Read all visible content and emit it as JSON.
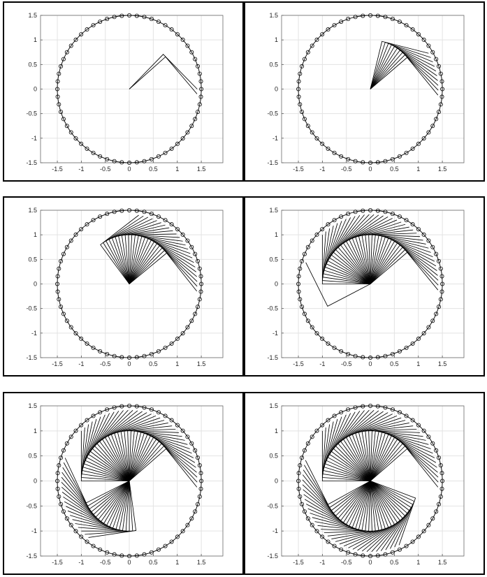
{
  "chart_data": [
    {
      "type": "line",
      "title": "",
      "xlabel": "",
      "ylabel": "",
      "xlim": [
        -1.85,
        1.95
      ],
      "ylim": [
        -1.5,
        1.5
      ],
      "grid": true,
      "x_ticks": [
        "-1.5",
        "-1",
        "-0.5",
        "0",
        "0.5",
        "1",
        "1.5"
      ],
      "y_ticks": [
        "1.5",
        "1",
        "0.5",
        "0",
        "-0.5",
        "-1",
        "-1.5"
      ],
      "circle": {
        "radius": 1.5,
        "marker_count": 60,
        "marker": "circle"
      },
      "arm": {
        "link_length": 1.0,
        "joint_angle_deg": -90
      },
      "series": [
        {
          "base_angle_deg": [
            45,
            41
          ]
        }
      ]
    },
    {
      "type": "line",
      "title": "",
      "xlabel": "",
      "ylabel": "",
      "xlim": [
        -1.85,
        1.95
      ],
      "ylim": [
        -1.5,
        1.5
      ],
      "grid": true,
      "x_ticks": [
        "-1.5",
        "-1",
        "-0.5",
        "0",
        "0.5",
        "1",
        "1.5"
      ],
      "y_ticks": [
        "1.5",
        "1",
        "0.5",
        "0",
        "-0.5",
        "-1",
        "-1.5"
      ],
      "circle": {
        "radius": 1.5,
        "marker_count": 60,
        "marker": "circle"
      },
      "arm": {
        "link_length": 1.0,
        "joint_angle_deg": -90
      },
      "series": [
        {
          "base_angle_deg": [
            76,
            72,
            68,
            64,
            60,
            56,
            52,
            48,
            44,
            40
          ]
        }
      ]
    },
    {
      "type": "line",
      "title": "",
      "xlabel": "",
      "ylabel": "",
      "xlim": [
        -1.85,
        1.95
      ],
      "ylim": [
        -1.5,
        1.5
      ],
      "grid": true,
      "x_ticks": [
        "-1.5",
        "-1",
        "-0.5",
        "0",
        "0.5",
        "1",
        "1.5"
      ],
      "y_ticks": [
        "1.5",
        "1",
        "0.5",
        "0",
        "-0.5",
        "-1",
        "-1.5"
      ],
      "circle": {
        "radius": 1.5,
        "marker_count": 60,
        "marker": "circle"
      },
      "arm": {
        "link_length": 1.0,
        "joint_angle_deg": -90
      },
      "series": [
        {
          "base_angle_deg": [
            127,
            123,
            119,
            115,
            111,
            107,
            103,
            99,
            95,
            91,
            87,
            83,
            79,
            75,
            71,
            67,
            63,
            59,
            55,
            51,
            47,
            43,
            39
          ]
        }
      ]
    },
    {
      "type": "line",
      "title": "",
      "xlabel": "",
      "ylabel": "",
      "xlim": [
        -1.85,
        1.95
      ],
      "ylim": [
        -1.5,
        1.5
      ],
      "grid": true,
      "x_ticks": [
        "-1.5",
        "-1",
        "-0.5",
        "0",
        "0.5",
        "1",
        "1.5"
      ],
      "y_ticks": [
        "1.5",
        "1",
        "0.5",
        "0",
        "-0.5",
        "-1",
        "-1.5"
      ],
      "circle": {
        "radius": 1.5,
        "marker_count": 60,
        "marker": "circle"
      },
      "arm": {
        "link_length": 1.0,
        "joint_angle_deg": -90
      },
      "series": [
        {
          "base_angle_deg": [
            -153,
            180,
            176,
            172,
            168,
            164,
            160,
            156,
            152,
            148,
            144,
            140,
            136,
            132,
            128,
            124,
            120,
            116,
            112,
            108,
            104,
            100,
            96,
            92,
            88,
            84,
            80,
            76,
            72,
            68,
            64,
            60,
            56,
            52,
            48,
            44,
            40
          ]
        }
      ]
    },
    {
      "type": "line",
      "title": "",
      "xlabel": "",
      "ylabel": "",
      "xlim": [
        -1.85,
        1.95
      ],
      "ylim": [
        -1.5,
        1.5
      ],
      "grid": true,
      "x_ticks": [
        "-1.5",
        "-1",
        "-0.5",
        "0",
        "0.5",
        "1",
        "1.5"
      ],
      "y_ticks": [
        "1.5",
        "1",
        "0.5",
        "0",
        "-0.5",
        "-1",
        "-1.5"
      ],
      "circle": {
        "radius": 1.5,
        "marker_count": 60,
        "marker": "circle"
      },
      "arm": {
        "link_length": 1.0,
        "joint_angle_deg": -90
      },
      "series": [
        {
          "base_angle_deg": [
            -82,
            -86,
            -90,
            -94,
            -98,
            -102,
            -106,
            -110,
            -114,
            -118,
            -122,
            -126,
            -130,
            -134,
            -138,
            -142,
            -146,
            -150,
            -154,
            180,
            176,
            172,
            168,
            164,
            160,
            156,
            152,
            148,
            144,
            140,
            136,
            132,
            128,
            124,
            120,
            116,
            112,
            108,
            104,
            100,
            96,
            92,
            88,
            84,
            80,
            76,
            72,
            68,
            64,
            60,
            56,
            52,
            48,
            44,
            40
          ]
        }
      ]
    },
    {
      "type": "line",
      "title": "",
      "xlabel": "",
      "ylabel": "",
      "xlim": [
        -1.85,
        1.95
      ],
      "ylim": [
        -1.5,
        1.5
      ],
      "grid": true,
      "x_ticks": [
        "-1.5",
        "-1",
        "-0.5",
        "0",
        "0.5",
        "1",
        "1.5"
      ],
      "y_ticks": [
        "1.5",
        "1",
        "0.5",
        "0",
        "-0.5",
        "-1",
        "-1.5"
      ],
      "circle": {
        "radius": 1.5,
        "marker_count": 60,
        "marker": "circle"
      },
      "arm": {
        "link_length": 1.0,
        "joint_angle_deg": -90
      },
      "series": [
        {
          "base_angle_deg": [
            -20,
            -24,
            -28,
            -32,
            -36,
            -40,
            -44,
            -48,
            -52,
            -56,
            -60,
            -64,
            -68,
            -72,
            -76,
            -80,
            -84,
            -88,
            -92,
            -96,
            -100,
            -104,
            -108,
            -112,
            -116,
            -120,
            -124,
            -128,
            -132,
            -136,
            -140,
            -144,
            -148,
            -152,
            180,
            176,
            172,
            168,
            164,
            160,
            156,
            152,
            148,
            144,
            140,
            136,
            132,
            128,
            124,
            120,
            116,
            112,
            108,
            104,
            100,
            96,
            92,
            88,
            84,
            80,
            76,
            72,
            68,
            64,
            60,
            56,
            52,
            48,
            44,
            40
          ]
        }
      ]
    }
  ]
}
